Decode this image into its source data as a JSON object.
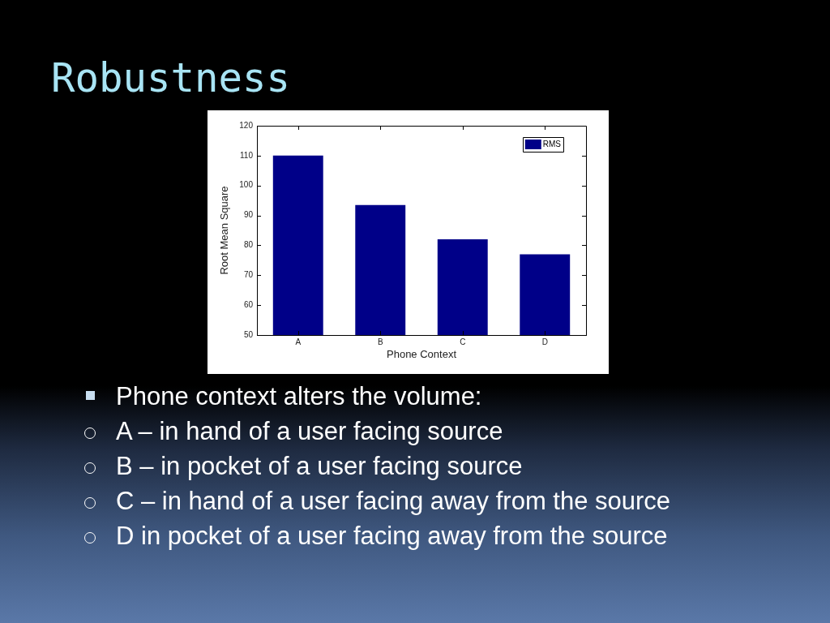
{
  "chart_data": {
    "type": "bar",
    "title": "Robustness",
    "xlabel": "Phone Context",
    "ylabel": "Root Mean Square",
    "categories": [
      "A",
      "B",
      "C",
      "D"
    ],
    "series": [
      {
        "name": "RMS",
        "color": "#000088",
        "values": [
          110,
          93.5,
          82,
          77
        ]
      }
    ],
    "ylim": [
      50,
      120
    ],
    "yticks": [
      50,
      60,
      70,
      80,
      90,
      100,
      110,
      120
    ],
    "grid": false,
    "legend": "top right",
    "annotations": [
      "Phone context alters the volume:",
      "A – in hand of a user facing source",
      "B – in pocket of a user facing source",
      "C – in hand of a user facing away from the source",
      "D in pocket of a user facing away from the source"
    ]
  }
}
